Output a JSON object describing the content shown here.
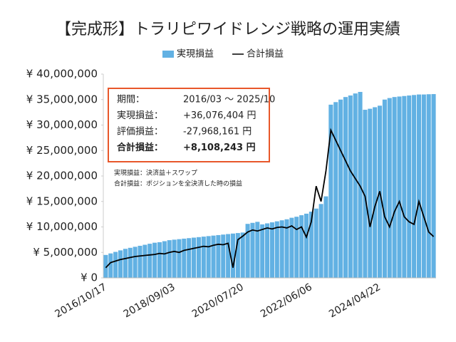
{
  "chart_data": {
    "type": "bar-line",
    "title": "【完成形】トラリピワイドレンジ戦略の運用実績",
    "categories": [
      "2016/10/17",
      null,
      null,
      null,
      null,
      null,
      null,
      null,
      null,
      null,
      null,
      null,
      null,
      null,
      "2018/09/03",
      null,
      null,
      null,
      null,
      null,
      null,
      null,
      null,
      null,
      null,
      null,
      null,
      null,
      "2020/07/20",
      null,
      null,
      null,
      null,
      null,
      null,
      null,
      null,
      null,
      null,
      null,
      null,
      null,
      "2022/06/06",
      null,
      null,
      null,
      null,
      null,
      null,
      null,
      null,
      null,
      null,
      null,
      null,
      null,
      "2024/04/22",
      null,
      null,
      null,
      null,
      null,
      null,
      null,
      null,
      null,
      null,
      null
    ],
    "series": [
      {
        "name": "実現損益",
        "color": "#62b1e3",
        "kind": "bar",
        "values": [
          4500000,
          4800000,
          5100000,
          5400000,
          5700000,
          5900000,
          6100000,
          6300000,
          6500000,
          6700000,
          6900000,
          7000000,
          7200000,
          7400000,
          7500000,
          7600000,
          7700000,
          7800000,
          7900000,
          8000000,
          8100000,
          8200000,
          8300000,
          8400000,
          8500000,
          8600000,
          8700000,
          8800000,
          8900000,
          10600000,
          10800000,
          11000000,
          10500000,
          10700000,
          10900000,
          11100000,
          11300000,
          11500000,
          11800000,
          12000000,
          12300000,
          12600000,
          13000000,
          13600000,
          14500000,
          16000000,
          34000000,
          34500000,
          35000000,
          35500000,
          35800000,
          36200000,
          36500000,
          33000000,
          33200000,
          33500000,
          33800000,
          35000000,
          35300000,
          35500000,
          35600000,
          35700000,
          35800000,
          35900000,
          36000000,
          36000000,
          36050000,
          36076404
        ]
      },
      {
        "name": "合計損益",
        "color": "#000000",
        "kind": "line",
        "values": [
          2000000,
          3000000,
          3300000,
          3600000,
          3800000,
          4000000,
          4200000,
          4300000,
          4400000,
          4500000,
          4600000,
          4800000,
          4700000,
          5000000,
          5200000,
          5000000,
          5400000,
          5600000,
          5800000,
          6000000,
          6200000,
          6100000,
          6400000,
          6600000,
          6500000,
          6800000,
          2000000,
          7500000,
          8200000,
          9000000,
          9400000,
          9200000,
          9500000,
          9800000,
          9600000,
          9900000,
          10000000,
          9800000,
          10200000,
          9500000,
          10000000,
          8000000,
          11000000,
          18000000,
          15000000,
          21000000,
          29000000,
          27000000,
          25000000,
          23000000,
          21000000,
          19500000,
          18000000,
          16000000,
          10000000,
          14000000,
          17000000,
          12000000,
          10000000,
          13000000,
          15000000,
          12000000,
          11000000,
          10500000,
          15000000,
          12000000,
          9000000,
          8108243
        ]
      }
    ],
    "ylim": [
      0,
      40000000
    ],
    "yticks": [
      {
        "value": 0,
        "label": "¥ 0"
      },
      {
        "value": 5000000,
        "label": "¥ 5,000,000"
      },
      {
        "value": 10000000,
        "label": "¥ 10,000,000"
      },
      {
        "value": 15000000,
        "label": "¥ 15,000,000"
      },
      {
        "value": 20000000,
        "label": "¥ 20,000,000"
      },
      {
        "value": 25000000,
        "label": "¥ 25,000,000"
      },
      {
        "value": 30000000,
        "label": "¥ 30,000,000"
      },
      {
        "value": 35000000,
        "label": "¥ 35,000,000"
      },
      {
        "value": 40000000,
        "label": "¥ 40,000,000"
      }
    ],
    "summary": [
      {
        "label": "期間：",
        "value": "2016/03 ～ 2025/10"
      },
      {
        "label": "実現損益：",
        "value": "+36,076,404 円"
      },
      {
        "label": "評価損益：",
        "value": "-27,968,161 円"
      },
      {
        "label": "合計損益：",
        "value": "+8,108,243 円"
      }
    ],
    "notes": [
      "実現損益：決済益＋スワップ",
      "合計損益：ポジションを全決済した時の損益"
    ]
  }
}
